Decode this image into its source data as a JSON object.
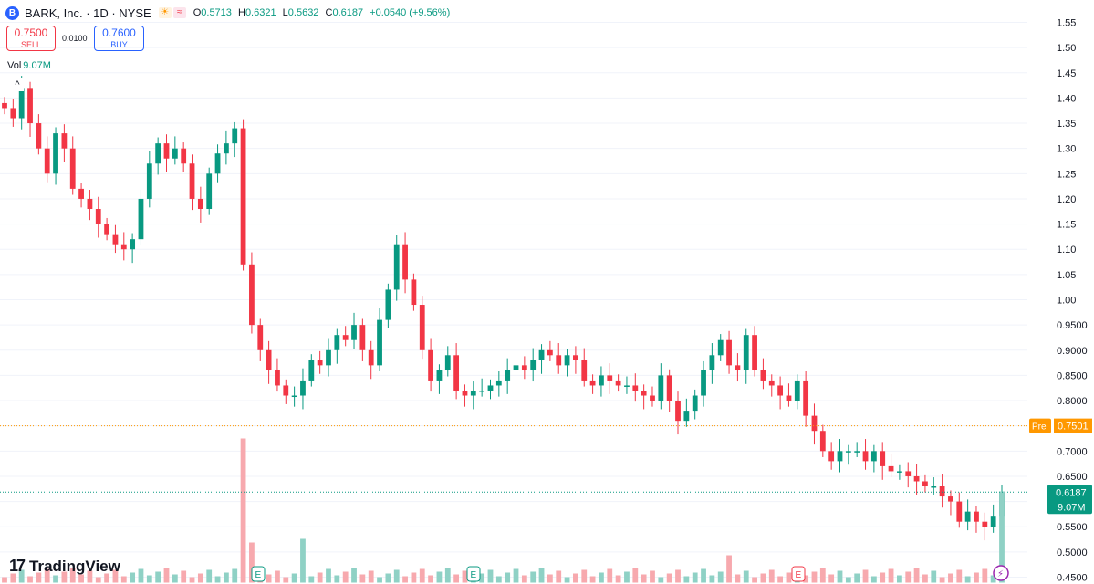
{
  "header": {
    "logo_letter": "B",
    "symbol_line": "BARK, Inc. · 1D · NYSE",
    "ohlc": {
      "o_label": "O",
      "o": "0.5713",
      "h_label": "H",
      "h": "0.6321",
      "l_label": "L",
      "l": "0.5632",
      "c_label": "C",
      "c": "0.6187",
      "change": "+0.0540 (+9.56%)"
    }
  },
  "trade": {
    "sell_price": "0.7500",
    "sell_label": "SELL",
    "spread": "0.0100",
    "buy_price": "0.7600",
    "buy_label": "BUY"
  },
  "volume_legend": {
    "label": "Vol",
    "value": "9.07M"
  },
  "branding": {
    "name": "TradingView"
  },
  "colors": {
    "up": "#089981",
    "down": "#f23645",
    "up_vol": "#8fd1c5",
    "down_vol": "#f7a9ae",
    "pre": "#ff9800",
    "grid": "#f0f3fa"
  },
  "chart_data": {
    "type": "candlestick",
    "symbol": "BARK",
    "interval": "1D",
    "ylim": [
      0.45,
      1.55
    ],
    "yticks": [
      "1.55",
      "1.50",
      "1.45",
      "1.40",
      "1.35",
      "1.30",
      "1.25",
      "1.20",
      "1.15",
      "1.10",
      "1.05",
      "1.00",
      "0.9500",
      "0.9000",
      "0.8500",
      "0.8000",
      "0.7500",
      "0.7000",
      "0.6500",
      "0.6000",
      "0.5500",
      "0.5000",
      "0.4500"
    ],
    "close_marks": [
      1.38,
      1.36,
      1.42,
      1.35,
      1.3,
      1.25,
      1.33,
      1.3,
      1.22,
      1.2,
      1.18,
      1.15,
      1.13,
      1.11,
      1.1,
      1.12,
      1.2,
      1.27,
      1.31,
      1.28,
      1.3,
      1.27,
      1.2,
      1.18,
      1.25,
      1.29,
      1.31,
      1.34,
      1.07,
      0.95,
      0.9,
      0.86,
      0.83,
      0.81,
      0.81,
      0.84,
      0.88,
      0.87,
      0.9,
      0.93,
      0.92,
      0.95,
      0.9,
      0.87,
      0.96,
      1.02,
      1.11,
      1.04,
      0.99,
      0.9,
      0.84,
      0.86,
      0.89,
      0.82,
      0.81,
      0.82,
      0.82,
      0.83,
      0.84,
      0.86,
      0.87,
      0.86,
      0.88,
      0.9,
      0.89,
      0.87,
      0.89,
      0.88,
      0.84,
      0.83,
      0.85,
      0.84,
      0.83,
      0.83,
      0.82,
      0.81,
      0.8,
      0.85,
      0.8,
      0.76,
      0.78,
      0.81,
      0.86,
      0.89,
      0.92,
      0.87,
      0.86,
      0.93,
      0.86,
      0.84,
      0.83,
      0.81,
      0.8,
      0.84,
      0.77,
      0.74,
      0.7,
      0.68,
      0.7,
      0.7,
      0.7,
      0.68,
      0.7,
      0.67,
      0.66,
      0.66,
      0.65,
      0.64,
      0.63,
      0.63,
      0.61,
      0.6,
      0.56,
      0.58,
      0.56,
      0.55,
      0.57,
      0.62
    ],
    "last_price": 0.6187,
    "last_volume": "9.07M",
    "pre_market": {
      "label": "Pre",
      "price": 0.7501
    },
    "event_markers": [
      "E",
      "E",
      "E"
    ],
    "volume_spike_positions": [
      0.242,
      0.303
    ]
  }
}
